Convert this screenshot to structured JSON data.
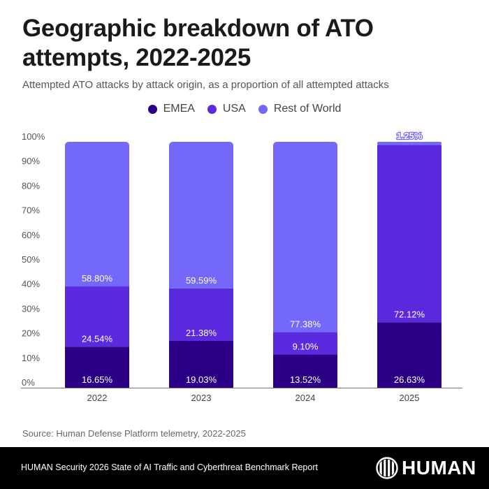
{
  "header": {
    "title": "Geographic breakdown of ATO attempts, 2022-2025",
    "subtitle": "Attempted ATO attacks by attack origin, as a proportion of all attempted attacks"
  },
  "legend": [
    {
      "label": "EMEA",
      "color": "#2b0086"
    },
    {
      "label": "USA",
      "color": "#5a2adf"
    },
    {
      "label": "Rest of World",
      "color": "#7468fa"
    }
  ],
  "chart_data": {
    "type": "bar",
    "stacked": true,
    "title": "Geographic breakdown of ATO attempts, 2022-2025",
    "subtitle": "Attempted ATO attacks by attack origin, as a proportion of all attempted attacks",
    "xlabel": "",
    "ylabel": "",
    "categories": [
      "2022",
      "2023",
      "2024",
      "2025"
    ],
    "ylim": [
      0,
      100
    ],
    "yticks": [
      "0%",
      "10%",
      "20%",
      "30%",
      "40%",
      "50%",
      "60%",
      "70%",
      "80%",
      "90%",
      "100%"
    ],
    "grid": false,
    "legend_position": "top-center",
    "series": [
      {
        "name": "EMEA",
        "color": "#2b0086",
        "values": [
          16.65,
          19.03,
          13.52,
          26.63
        ],
        "labels": [
          "16.65%",
          "19.03%",
          "13.52%",
          "26.63%"
        ]
      },
      {
        "name": "USA",
        "color": "#5a2adf",
        "values": [
          24.54,
          21.38,
          9.1,
          72.12
        ],
        "labels": [
          "24.54%",
          "21.38%",
          "9.10%",
          "72.12%"
        ]
      },
      {
        "name": "Rest of World",
        "color": "#7468fa",
        "values": [
          58.8,
          59.59,
          77.38,
          1.25
        ],
        "labels": [
          "58.80%",
          "59.59%",
          "77.38%",
          "1.25%"
        ]
      }
    ]
  },
  "source": "Source: Human Defense Platform telemetry, 2022-2025",
  "footer": {
    "report": "HUMAN Security 2026 State of AI Traffic and Cyberthreat Benchmark Report",
    "logo_text": "HUMAN"
  }
}
